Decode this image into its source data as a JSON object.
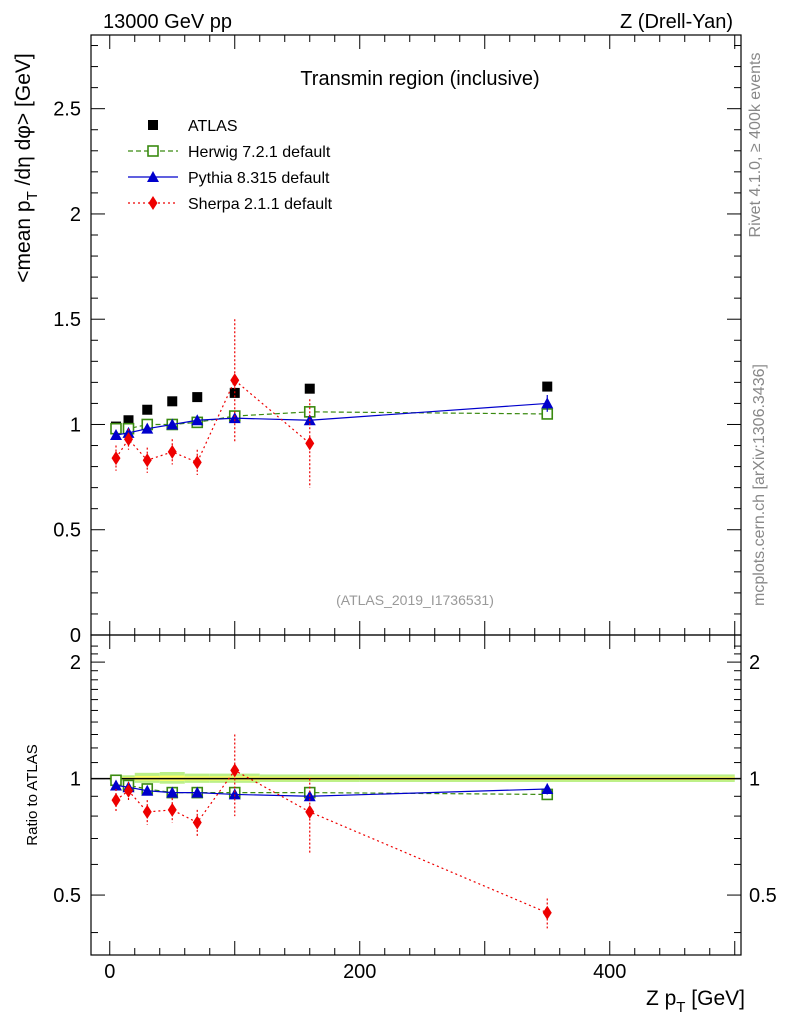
{
  "header": {
    "left": "13000 GeV pp",
    "right": "Z (Drell-Yan)"
  },
  "side_labels": {
    "rivet": "Rivet 4.1.0, ≥ 400k events",
    "mcplots": "mcplots.cern.ch [arXiv:1306.3436]"
  },
  "colors": {
    "atlas": "#000000",
    "herwig": "#3a8a10",
    "pythia": "#0000cc",
    "sherpa": "#ee0000",
    "band_inner": "#ffff66",
    "band_outer": "#bbf088"
  },
  "chart_data": [
    {
      "type": "scatter",
      "title": "Transmin region (inclusive)",
      "analysis_tag": "(ATLAS_2019_I1736531)",
      "ylabel_main": "<mean p",
      "ylabel_sub": "T",
      "ylabel_rest": " /dη dφ> [GeV]",
      "xlim": [
        -15,
        505
      ],
      "ylim": [
        0,
        2.85
      ],
      "yticks": [
        {
          "v": 0.5,
          "label": "0.5"
        },
        {
          "v": 1,
          "label": "1"
        },
        {
          "v": 1.5,
          "label": "1.5"
        },
        {
          "v": 2,
          "label": "2"
        },
        {
          "v": 2.5,
          "label": "2.5"
        },
        {
          "v": 0,
          "label": "0"
        }
      ],
      "legend": [
        {
          "key": "atlas",
          "label": "ATLAS"
        },
        {
          "key": "herwig",
          "label": "Herwig 7.2.1 default"
        },
        {
          "key": "pythia",
          "label": "Pythia 8.315 default"
        },
        {
          "key": "sherpa",
          "label": "Sherpa 2.1.1 default"
        }
      ],
      "x": [
        5,
        15,
        30,
        50,
        70,
        100,
        160,
        350
      ],
      "series": [
        {
          "key": "atlas",
          "name": "ATLAS",
          "values": [
            0.99,
            1.02,
            1.07,
            1.11,
            1.13,
            1.15,
            1.17,
            1.18
          ],
          "err": [
            0.01,
            0.01,
            0.01,
            0.01,
            0.01,
            0.01,
            0.01,
            0.01
          ]
        },
        {
          "key": "herwig",
          "name": "Herwig 7.2.1 default",
          "values": [
            0.98,
            0.98,
            1.0,
            1.0,
            1.01,
            1.04,
            1.06,
            1.05
          ],
          "err": [
            0.01,
            0.01,
            0.01,
            0.01,
            0.01,
            0.01,
            0.01,
            0.01
          ]
        },
        {
          "key": "pythia",
          "name": "Pythia 8.315 default",
          "values": [
            0.95,
            0.96,
            0.98,
            1.0,
            1.02,
            1.03,
            1.02,
            1.1
          ],
          "err": [
            0.01,
            0.01,
            0.01,
            0.01,
            0.01,
            0.01,
            0.01,
            0.04
          ]
        },
        {
          "key": "sherpa",
          "name": "Sherpa 2.1.1 default",
          "values": [
            0.84,
            0.93,
            0.83,
            0.87,
            0.82,
            1.21,
            0.91,
            null
          ],
          "err": [
            0.06,
            0.05,
            0.06,
            0.06,
            0.06,
            0.29,
            0.21,
            null
          ]
        }
      ]
    },
    {
      "type": "scatter",
      "ylabel": "Ratio to ATLAS",
      "xlabel_main": "Z p",
      "xlabel_sub": "T",
      "xlabel_rest": " [GeV]",
      "xlim": [
        -15,
        505
      ],
      "ylim": [
        0.35,
        2.35
      ],
      "scale": "log",
      "yticks": [
        {
          "v": 0.5,
          "label": "0.5"
        },
        {
          "v": 1,
          "label": "1"
        },
        {
          "v": 2,
          "label": "2"
        }
      ],
      "xticks": [
        {
          "v": 0,
          "label": "0"
        },
        {
          "v": 200,
          "label": "200"
        },
        {
          "v": 400,
          "label": "400"
        }
      ],
      "x": [
        5,
        15,
        30,
        50,
        70,
        100,
        160,
        350
      ],
      "series": [
        {
          "key": "herwig",
          "name": "Herwig 7.2.1 default",
          "values": [
            0.99,
            0.96,
            0.94,
            0.92,
            0.92,
            0.92,
            0.92,
            0.91
          ],
          "err": [
            0.01,
            0.01,
            0.01,
            0.01,
            0.01,
            0.01,
            0.01,
            0.01
          ]
        },
        {
          "key": "pythia",
          "name": "Pythia 8.315 default",
          "values": [
            0.96,
            0.95,
            0.93,
            0.92,
            0.92,
            0.91,
            0.9,
            0.94
          ],
          "err": [
            0.01,
            0.01,
            0.01,
            0.01,
            0.01,
            0.01,
            0.01,
            0.03
          ]
        },
        {
          "key": "sherpa",
          "name": "Sherpa 2.1.1 default",
          "values": [
            0.88,
            0.93,
            0.82,
            0.83,
            0.77,
            1.05,
            0.82,
            0.45
          ],
          "err": [
            0.06,
            0.05,
            0.06,
            0.06,
            0.06,
            0.25,
            0.18,
            0.04
          ]
        }
      ]
    }
  ]
}
